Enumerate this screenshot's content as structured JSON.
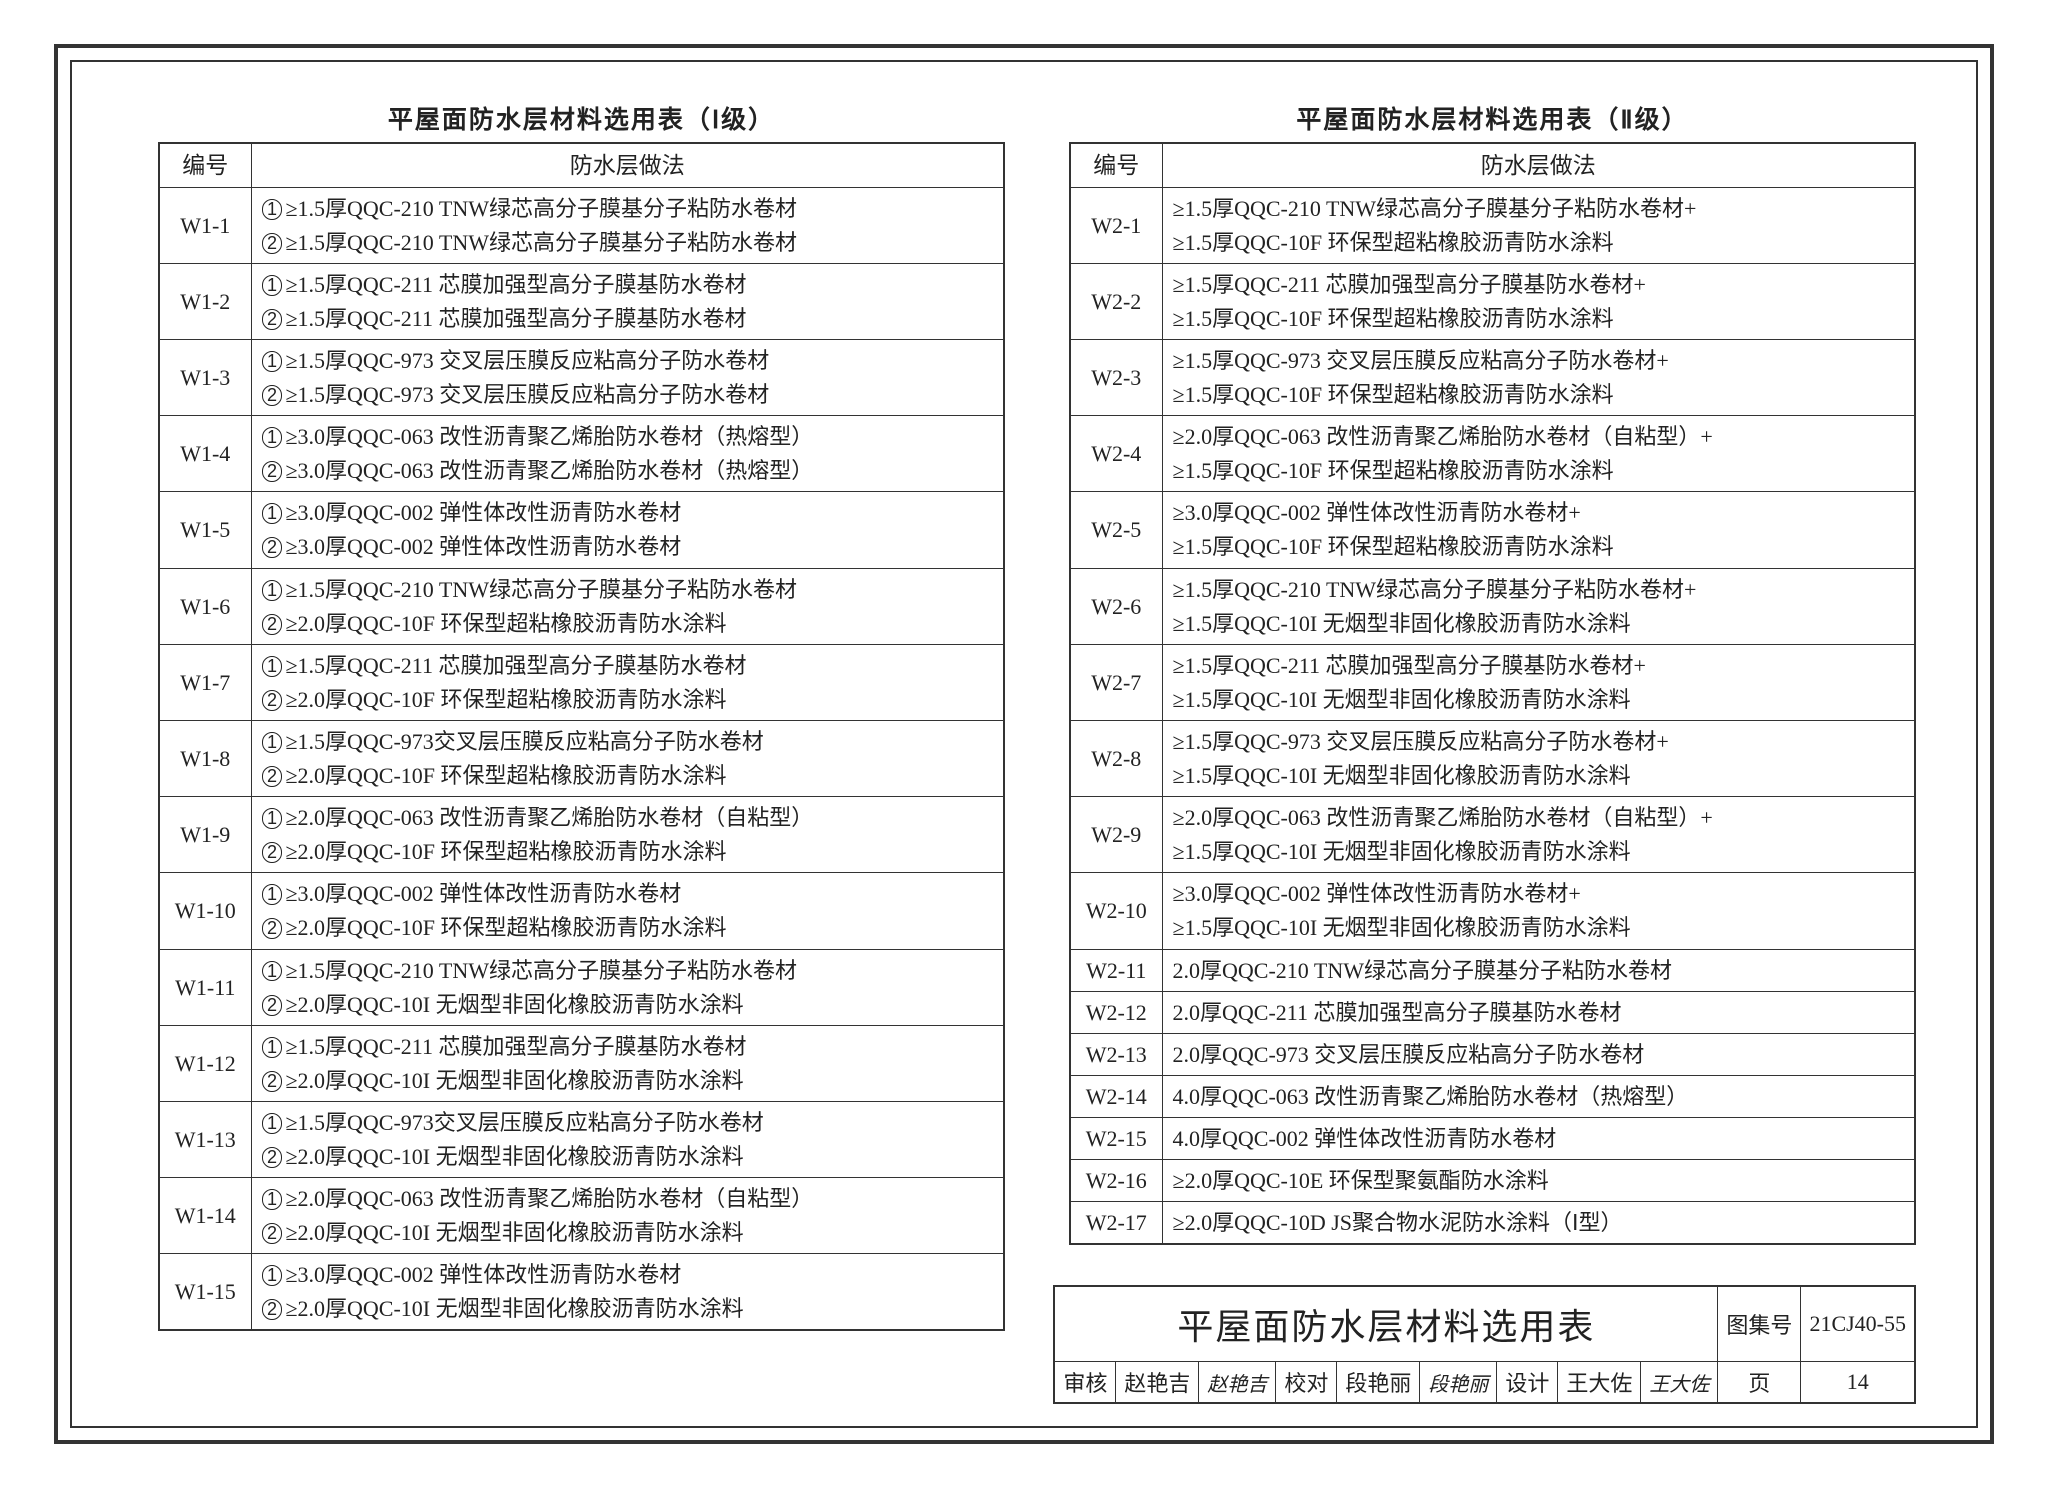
{
  "sheet_border_color": "#333333",
  "text_color": "#222222",
  "font_family": "SimSun",
  "table_left": {
    "title": "平屋面防水层材料选用表（Ⅰ级）",
    "columns": [
      "编号",
      "防水层做法"
    ],
    "rows": [
      {
        "code": "W1-1",
        "lines": [
          "①≥1.5厚QQC-210 TNW绿芯高分子膜基分子粘防水卷材",
          "②≥1.5厚QQC-210 TNW绿芯高分子膜基分子粘防水卷材"
        ]
      },
      {
        "code": "W1-2",
        "lines": [
          "①≥1.5厚QQC-211 芯膜加强型高分子膜基防水卷材",
          "②≥1.5厚QQC-211 芯膜加强型高分子膜基防水卷材"
        ]
      },
      {
        "code": "W1-3",
        "lines": [
          "①≥1.5厚QQC-973 交叉层压膜反应粘高分子防水卷材",
          "②≥1.5厚QQC-973 交叉层压膜反应粘高分子防水卷材"
        ]
      },
      {
        "code": "W1-4",
        "lines": [
          "①≥3.0厚QQC-063 改性沥青聚乙烯胎防水卷材（热熔型）",
          "②≥3.0厚QQC-063 改性沥青聚乙烯胎防水卷材（热熔型）"
        ]
      },
      {
        "code": "W1-5",
        "lines": [
          "①≥3.0厚QQC-002 弹性体改性沥青防水卷材",
          "②≥3.0厚QQC-002 弹性体改性沥青防水卷材"
        ]
      },
      {
        "code": "W1-6",
        "lines": [
          "①≥1.5厚QQC-210 TNW绿芯高分子膜基分子粘防水卷材",
          "②≥2.0厚QQC-10F 环保型超粘橡胶沥青防水涂料"
        ]
      },
      {
        "code": "W1-7",
        "lines": [
          "①≥1.5厚QQC-211 芯膜加强型高分子膜基防水卷材",
          "②≥2.0厚QQC-10F 环保型超粘橡胶沥青防水涂料"
        ]
      },
      {
        "code": "W1-8",
        "lines": [
          "①≥1.5厚QQC-973交叉层压膜反应粘高分子防水卷材",
          "②≥2.0厚QQC-10F 环保型超粘橡胶沥青防水涂料"
        ]
      },
      {
        "code": "W1-9",
        "lines": [
          "①≥2.0厚QQC-063 改性沥青聚乙烯胎防水卷材（自粘型）",
          "②≥2.0厚QQC-10F 环保型超粘橡胶沥青防水涂料"
        ]
      },
      {
        "code": "W1-10",
        "lines": [
          "①≥3.0厚QQC-002 弹性体改性沥青防水卷材",
          "②≥2.0厚QQC-10F 环保型超粘橡胶沥青防水涂料"
        ]
      },
      {
        "code": "W1-11",
        "lines": [
          "①≥1.5厚QQC-210 TNW绿芯高分子膜基分子粘防水卷材",
          "②≥2.0厚QQC-10I 无烟型非固化橡胶沥青防水涂料"
        ]
      },
      {
        "code": "W1-12",
        "lines": [
          "①≥1.5厚QQC-211 芯膜加强型高分子膜基防水卷材",
          "②≥2.0厚QQC-10I 无烟型非固化橡胶沥青防水涂料"
        ]
      },
      {
        "code": "W1-13",
        "lines": [
          "①≥1.5厚QQC-973交叉层压膜反应粘高分子防水卷材",
          "②≥2.0厚QQC-10I 无烟型非固化橡胶沥青防水涂料"
        ]
      },
      {
        "code": "W1-14",
        "lines": [
          "①≥2.0厚QQC-063 改性沥青聚乙烯胎防水卷材（自粘型）",
          "②≥2.0厚QQC-10I 无烟型非固化橡胶沥青防水涂料"
        ]
      },
      {
        "code": "W1-15",
        "lines": [
          "①≥3.0厚QQC-002 弹性体改性沥青防水卷材",
          "②≥2.0厚QQC-10I 无烟型非固化橡胶沥青防水涂料"
        ]
      }
    ]
  },
  "table_right": {
    "title": "平屋面防水层材料选用表（Ⅱ级）",
    "columns": [
      "编号",
      "防水层做法"
    ],
    "rows": [
      {
        "code": "W2-1",
        "lines": [
          "≥1.5厚QQC-210 TNW绿芯高分子膜基分子粘防水卷材+",
          "≥1.5厚QQC-10F 环保型超粘橡胶沥青防水涂料"
        ]
      },
      {
        "code": "W2-2",
        "lines": [
          "≥1.5厚QQC-211 芯膜加强型高分子膜基防水卷材+",
          "≥1.5厚QQC-10F 环保型超粘橡胶沥青防水涂料"
        ]
      },
      {
        "code": "W2-3",
        "lines": [
          "≥1.5厚QQC-973 交叉层压膜反应粘高分子防水卷材+",
          "≥1.5厚QQC-10F 环保型超粘橡胶沥青防水涂料"
        ]
      },
      {
        "code": "W2-4",
        "lines": [
          "≥2.0厚QQC-063 改性沥青聚乙烯胎防水卷材（自粘型）+",
          "≥1.5厚QQC-10F 环保型超粘橡胶沥青防水涂料"
        ]
      },
      {
        "code": "W2-5",
        "lines": [
          "≥3.0厚QQC-002 弹性体改性沥青防水卷材+",
          "≥1.5厚QQC-10F 环保型超粘橡胶沥青防水涂料"
        ]
      },
      {
        "code": "W2-6",
        "lines": [
          "≥1.5厚QQC-210 TNW绿芯高分子膜基分子粘防水卷材+",
          "≥1.5厚QQC-10I 无烟型非固化橡胶沥青防水涂料"
        ]
      },
      {
        "code": "W2-7",
        "lines": [
          "≥1.5厚QQC-211 芯膜加强型高分子膜基防水卷材+",
          "≥1.5厚QQC-10I 无烟型非固化橡胶沥青防水涂料"
        ]
      },
      {
        "code": "W2-8",
        "lines": [
          "≥1.5厚QQC-973 交叉层压膜反应粘高分子防水卷材+",
          "≥1.5厚QQC-10I 无烟型非固化橡胶沥青防水涂料"
        ]
      },
      {
        "code": "W2-9",
        "lines": [
          "≥2.0厚QQC-063 改性沥青聚乙烯胎防水卷材（自粘型）+",
          "≥1.5厚QQC-10I 无烟型非固化橡胶沥青防水涂料"
        ]
      },
      {
        "code": "W2-10",
        "lines": [
          "≥3.0厚QQC-002 弹性体改性沥青防水卷材+",
          "≥1.5厚QQC-10I 无烟型非固化橡胶沥青防水涂料"
        ]
      },
      {
        "code": "W2-11",
        "lines": [
          "2.0厚QQC-210 TNW绿芯高分子膜基分子粘防水卷材"
        ]
      },
      {
        "code": "W2-12",
        "lines": [
          "2.0厚QQC-211 芯膜加强型高分子膜基防水卷材"
        ]
      },
      {
        "code": "W2-13",
        "lines": [
          "2.0厚QQC-973 交叉层压膜反应粘高分子防水卷材"
        ]
      },
      {
        "code": "W2-14",
        "lines": [
          "4.0厚QQC-063 改性沥青聚乙烯胎防水卷材（热熔型）"
        ]
      },
      {
        "code": "W2-15",
        "lines": [
          "4.0厚QQC-002 弹性体改性沥青防水卷材"
        ]
      },
      {
        "code": "W2-16",
        "lines": [
          "≥2.0厚QQC-10E 环保型聚氨酯防水涂料"
        ]
      },
      {
        "code": "W2-17",
        "lines": [
          "≥2.0厚QQC-10D JS聚合物水泥防水涂料（Ⅰ型）"
        ]
      }
    ]
  },
  "titleblock": {
    "main": "平屋面防水层材料选用表",
    "collection_label": "图集号",
    "collection_value": "21CJ40-55",
    "page_label": "页",
    "page_value": "14",
    "review_label": "审核",
    "review_name": "赵艳吉",
    "review_sig": "赵艳吉",
    "check_label": "校对",
    "check_name": "段艳丽",
    "check_sig": "段艳丽",
    "design_label": "设计",
    "design_name": "王大佐",
    "design_sig": "王大佐"
  }
}
